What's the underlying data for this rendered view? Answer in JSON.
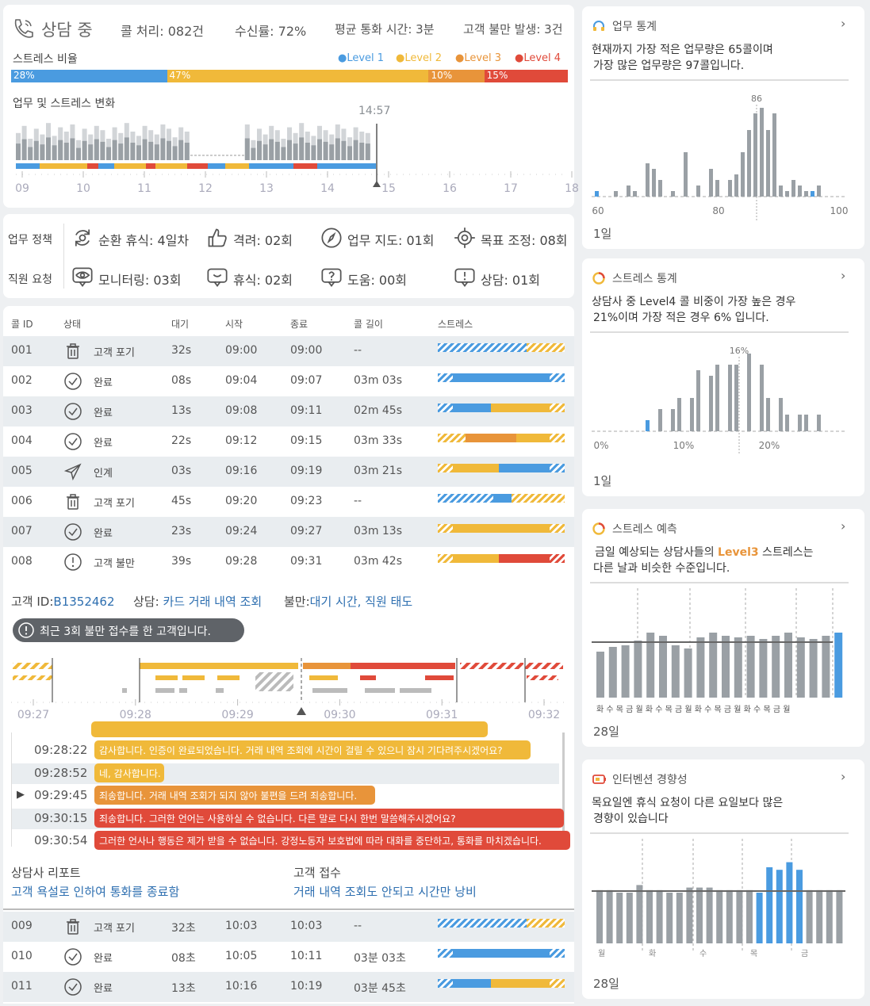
{
  "status": {
    "title": "상담 중",
    "calls": "콜 처리: 082건",
    "rate": "수신률: 72%",
    "avg": "평균 통화 시간: 3분",
    "complaints": "고객 불만 발생: 3건"
  },
  "stress": {
    "label": "스트레스 비율",
    "legend": [
      "●Level 1",
      "●Level 2",
      "●Level 3",
      "●Level 4"
    ],
    "pcts": [
      "28%",
      "47%",
      "10%",
      "15%"
    ],
    "values": [
      28,
      47,
      10,
      15
    ],
    "colors": [
      "#4a9be0",
      "#f0b93a",
      "#e8943a",
      "#e04a3a"
    ]
  },
  "trend": {
    "title": "업무 및 스트레스 변화",
    "marker": "14:57",
    "ticks": [
      "09",
      "10",
      "11",
      "12",
      "13",
      "14",
      "15",
      "16",
      "17",
      "18"
    ]
  },
  "policy": {
    "label1": "업무 정책",
    "label2": "직원 요청",
    "items1": [
      {
        "icon": "rotate-icon",
        "text": "순환 휴식: 4일차"
      },
      {
        "icon": "thumbs-up-icon",
        "text": "격려: 02회"
      },
      {
        "icon": "compass-icon",
        "text": "업무 지도: 01회"
      },
      {
        "icon": "target-icon",
        "text": "목표 조정: 08회"
      }
    ],
    "items2": [
      {
        "icon": "eye-icon",
        "text": "모니터링: 03회"
      },
      {
        "icon": "chat-icon",
        "text": "휴식: 02회"
      },
      {
        "icon": "question-icon",
        "text": "도움: 00회"
      },
      {
        "icon": "alert-chat-icon",
        "text": "상담: 01회"
      }
    ]
  },
  "table": {
    "headers": [
      "콜 ID",
      "상태",
      "대기",
      "시작",
      "종료",
      "콜 길이",
      "스트레스"
    ],
    "rows": [
      {
        "id": "001",
        "icon": "trash-icon",
        "status": "고객 포기",
        "wait": "32s",
        "start": "09:00",
        "end": "09:00",
        "len": "--"
      },
      {
        "id": "002",
        "icon": "check-icon",
        "status": "완료",
        "wait": "08s",
        "start": "09:04",
        "end": "09:07",
        "len": "03m 03s"
      },
      {
        "id": "003",
        "icon": "check-icon",
        "status": "완료",
        "wait": "13s",
        "start": "09:08",
        "end": "09:11",
        "len": "02m 45s"
      },
      {
        "id": "004",
        "icon": "check-icon",
        "status": "완료",
        "wait": "22s",
        "start": "09:12",
        "end": "09:15",
        "len": "03m 33s"
      },
      {
        "id": "005",
        "icon": "send-icon",
        "status": "인계",
        "wait": "03s",
        "start": "09:16",
        "end": "09:19",
        "len": "03m 21s"
      },
      {
        "id": "006",
        "icon": "trash-icon",
        "status": "고객 포기",
        "wait": "45s",
        "start": "09:20",
        "end": "09:23",
        "len": "--"
      },
      {
        "id": "007",
        "icon": "check-icon",
        "status": "완료",
        "wait": "23s",
        "start": "09:24",
        "end": "09:27",
        "len": "03m 13s"
      },
      {
        "id": "008",
        "icon": "alert-icon",
        "status": "고객 불만",
        "wait": "39s",
        "start": "09:28",
        "end": "09:31",
        "len": "03m 42s"
      }
    ]
  },
  "customer": {
    "id_label": "고객 ID:",
    "id": "B1352462",
    "topic_label": "상담:",
    "topic": "카드 거래 내역 조회",
    "complaint_label": "불만:",
    "complaint": "대기 시간, 직원 태도",
    "alert": "최근 3회 불만 접수를 한 고객입니다.",
    "ticks": [
      "09:27",
      "09:28",
      "09:29",
      "09:30",
      "09:31",
      "09:32"
    ]
  },
  "chat": [
    {
      "time": "09:28:22",
      "text": "감사합니다. 인증이 완료되었습니다. 거래 내역 조회에 시간이 걸릴 수 있으니 잠시 기다려주시겠어요?",
      "color": "#f0b93a"
    },
    {
      "time": "09:28:52",
      "text": "네, 감사합니다.",
      "color": "#f0b93a"
    },
    {
      "time": "09:29:45",
      "text": "죄송합니다. 거래 내역 조회가 되지 않아 불편을 드려 죄송합니다.",
      "color": "#e8943a"
    },
    {
      "time": "09:30:15",
      "text": "죄송합니다. 그러한 언어는 사용하실 수 없습니다. 다른 말로 다시 한번 말씀해주시겠어요?",
      "color": "#e04a3a"
    },
    {
      "time": "09:30:54",
      "text": "그러한 언사나 행동은 제가 받을 수 없습니다. 강정노동자 보호법에 따라 대화를 중단하고, 통화를 마치겠습니다.",
      "color": "#e04a3a"
    }
  ],
  "report": {
    "agent_label": "상담사 리포트",
    "agent_text": "고객 욕설로 인하여 통화를 종료함",
    "cust_label": "고객 접수",
    "cust_text": "거래 내역 조회도 안되고 시간만 낭비"
  },
  "table2": [
    {
      "id": "009",
      "icon": "trash-icon",
      "status": "고객 포기",
      "wait": "32초",
      "start": "10:03",
      "end": "10:03",
      "len": "--"
    },
    {
      "id": "010",
      "icon": "check-icon",
      "status": "완료",
      "wait": "08초",
      "start": "10:05",
      "end": "10:11",
      "len": "03분 03초"
    },
    {
      "id": "011",
      "icon": "check-icon",
      "status": "완료",
      "wait": "13초",
      "start": "10:16",
      "end": "10:19",
      "len": "03분 45초"
    }
  ],
  "cards": [
    {
      "title": "업무 통계",
      "icon": "headset-icon",
      "text1": "현재까지 가장 적은 업무량은 65콜이며",
      "text2": "가장 많은 업무량은 97콜입니다.",
      "peak": "86",
      "axis": [
        "60",
        "80",
        "100"
      ],
      "footer": "1일"
    },
    {
      "title": "스트레스 통계",
      "icon": "ring-icon",
      "text1": "상담사 중 Level4 콜 비중이 가장 높은 경우",
      "text2": "21%이며 가장 적은 경우 6% 입니다.",
      "peak": "16%",
      "axis": [
        "0%",
        "10%",
        "20%"
      ],
      "footer": "1일"
    },
    {
      "title": "스트레스 예측",
      "icon": "ring-icon",
      "text1_a": "금일 예상되는 상담사들의 ",
      "text1_b": "Level3",
      "text1_c": " 스트레스는",
      "text2": "다른 날과 비슷한 수준입니다.",
      "days": "화 수 목 금 월 화 수 목 금 월 화 수 목 금 월 화 수 목 금 월",
      "footer": "28일"
    },
    {
      "title": "인터벤션 경향성",
      "icon": "battery-icon",
      "text1": "목요일엔 휴식 요청이 다른 요일보다 많은",
      "text2": "경향이 있습니다",
      "days": [
        "월",
        "화",
        "수",
        "목",
        "금"
      ],
      "footer": "28일"
    }
  ]
}
